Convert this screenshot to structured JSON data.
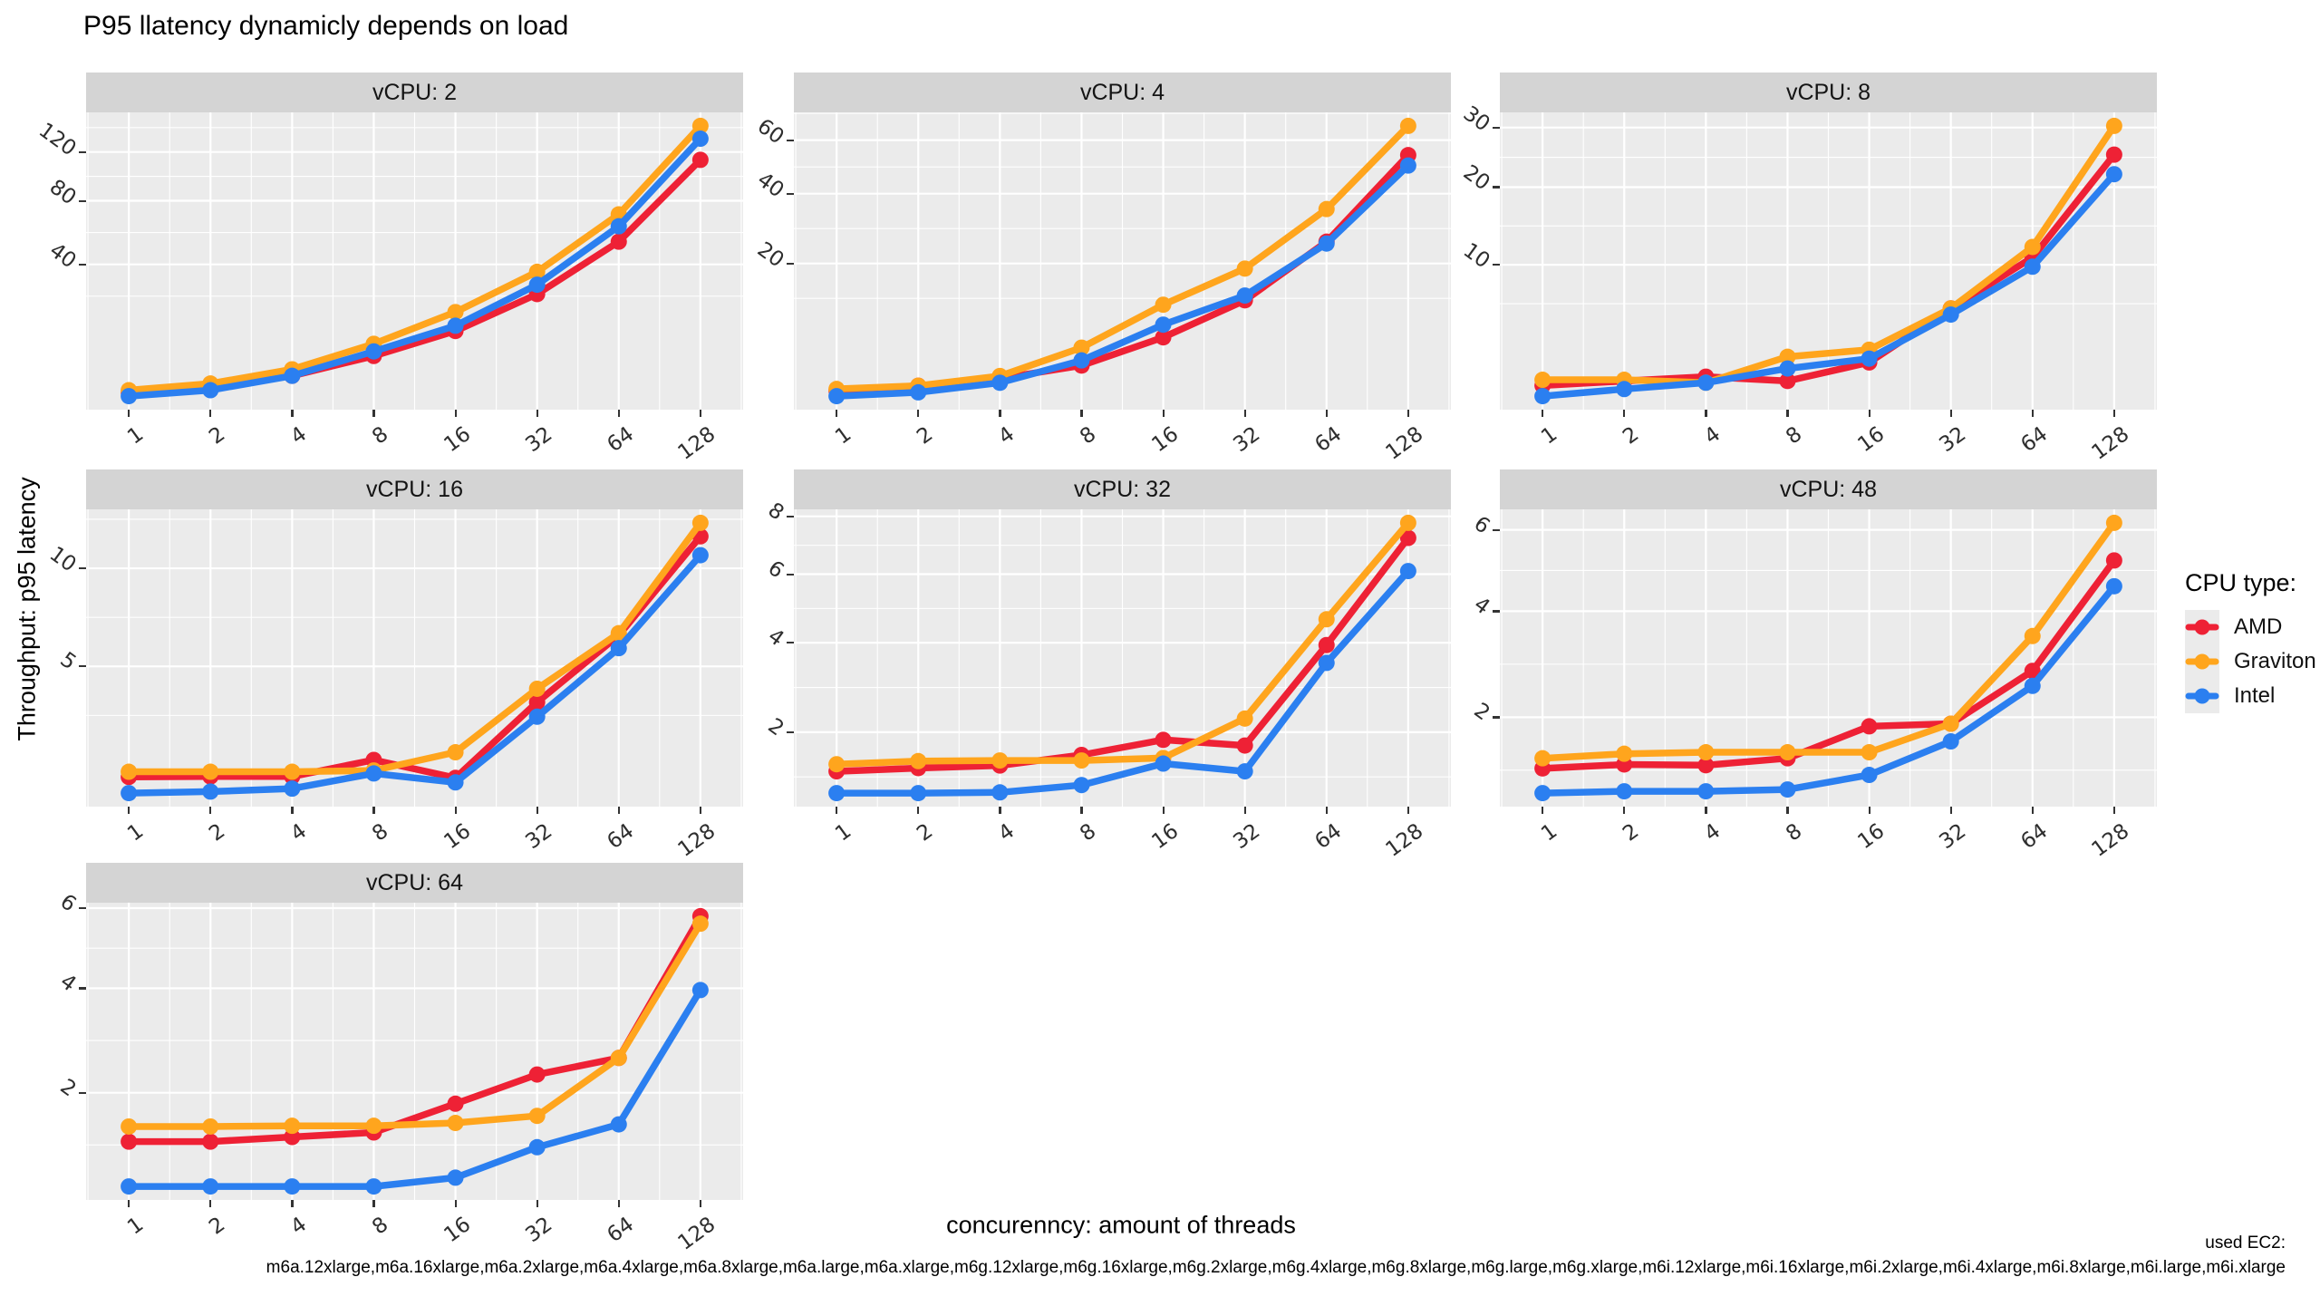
{
  "page": {
    "title": "P95 llatency dynamicly depends on load",
    "x_axis_title": "concurenncy: amount of threads",
    "y_axis_title": "Throughput: p95 latency",
    "caption_line1": "used EC2:",
    "caption_line2": "m6a.12xlarge,m6a.16xlarge,m6a.2xlarge,m6a.4xlarge,m6a.8xlarge,m6a.large,m6a.xlarge,m6g.12xlarge,m6g.16xlarge,m6g.2xlarge,m6g.4xlarge,m6g.8xlarge,m6g.large,m6g.xlarge,m6i.12xlarge,m6i.16xlarge,m6i.2xlarge,m6i.4xlarge,m6i.8xlarge,m6i.large,m6i.xlarge"
  },
  "legend": {
    "title": "CPU type:",
    "items": [
      {
        "label": "AMD",
        "color": "#ee2135"
      },
      {
        "label": "Graviton",
        "color": "#ffa51d"
      },
      {
        "label": "Intel",
        "color": "#2b7ff0"
      }
    ]
  },
  "chart_data": {
    "type": "line",
    "facet_variable": "vCPU",
    "x_scale": "log2",
    "y_scale": "sqrt",
    "x": [
      1,
      2,
      4,
      8,
      16,
      32,
      64,
      128
    ],
    "x_tick_labels": [
      "1",
      "2",
      "4",
      "8",
      "16",
      "32",
      "64",
      "128"
    ],
    "grid": "on",
    "legend_position": "right",
    "panel_background": "#ebebeb",
    "strip_background": "#d4d4d4",
    "gridline_color": "#ffffff",
    "facets": [
      {
        "label": "vCPU: 2",
        "yticks": [
          40,
          80,
          120
        ],
        "series": [
          {
            "name": "AMD",
            "values": [
              1.1,
              1.6,
              3.0,
              6.5,
              12.8,
              26.0,
              52.7,
              113.0
            ]
          },
          {
            "name": "Graviton",
            "values": [
              1.3,
              2.0,
              4.0,
              9.3,
              19.0,
              36.2,
              70.3,
              144.7
            ]
          },
          {
            "name": "Intel",
            "values": [
              0.8,
              1.3,
              3.0,
              7.5,
              14.4,
              30.1,
              62.3,
              132.3
            ]
          }
        ]
      },
      {
        "label": "vCPU: 4",
        "yticks": [
          20,
          40,
          60
        ],
        "series": [
          {
            "name": "AMD",
            "values": [
              1.2,
              1.5,
              2.0,
              3.1,
              6.3,
              12.2,
              25.5,
              54.0
            ]
          },
          {
            "name": "Graviton",
            "values": [
              1.3,
              1.5,
              2.2,
              5.0,
              11.4,
              18.8,
              35.0,
              66.0
            ]
          },
          {
            "name": "Intel",
            "values": [
              0.9,
              1.1,
              1.7,
              3.6,
              8.1,
              13.1,
              25.0,
              50.0
            ]
          }
        ]
      },
      {
        "label": "vCPU: 8",
        "yticks": [
          10,
          20,
          30
        ],
        "series": [
          {
            "name": "AMD",
            "values": [
              1.27,
              1.45,
              1.63,
              1.45,
              2.3,
              5.9,
              10.8,
              25.2
            ]
          },
          {
            "name": "Graviton",
            "values": [
              1.5,
              1.5,
              1.38,
              2.6,
              3.0,
              5.9,
              12.0,
              30.3
            ]
          },
          {
            "name": "Intel",
            "values": [
              0.9,
              1.14,
              1.38,
              2.0,
              2.5,
              5.4,
              9.8,
              22.0
            ]
          }
        ]
      },
      {
        "label": "vCPU: 16",
        "yticks": [
          5,
          10
        ],
        "series": [
          {
            "name": "AMD",
            "values": [
              1.42,
              1.43,
              1.43,
              1.83,
              1.4,
              3.6,
              6.4,
              12.0
            ]
          },
          {
            "name": "Graviton",
            "values": [
              1.54,
              1.54,
              1.54,
              1.57,
              2.03,
              4.1,
              6.5,
              12.9
            ]
          },
          {
            "name": "Intel",
            "values": [
              1.08,
              1.11,
              1.17,
              1.5,
              1.3,
              3.1,
              5.8,
              10.8
            ]
          }
        ]
      },
      {
        "label": "vCPU: 32",
        "yticks": [
          2,
          4,
          6,
          8
        ],
        "series": [
          {
            "name": "AMD",
            "values": [
              1.34,
              1.39,
              1.43,
              1.6,
              1.86,
              1.76,
              3.94,
              7.22
            ]
          },
          {
            "name": "Graviton",
            "values": [
              1.45,
              1.5,
              1.51,
              1.51,
              1.55,
              2.26,
              4.64,
              7.76
            ]
          },
          {
            "name": "Intel",
            "values": [
              1.03,
              1.03,
              1.04,
              1.14,
              1.46,
              1.34,
              3.49,
              6.1
            ]
          }
        ]
      },
      {
        "label": "vCPU: 48",
        "yticks": [
          2,
          4,
          6
        ],
        "series": [
          {
            "name": "AMD",
            "values": [
              1.28,
              1.33,
              1.32,
              1.41,
              1.86,
              1.9,
              2.79,
              5.2
            ]
          },
          {
            "name": "Graviton",
            "values": [
              1.41,
              1.47,
              1.49,
              1.49,
              1.49,
              1.9,
              3.47,
              6.19
            ]
          },
          {
            "name": "Intel",
            "values": [
              0.99,
              1.01,
              1.01,
              1.03,
              1.2,
              1.64,
              2.52,
              4.57
            ]
          }
        ]
      },
      {
        "label": "vCPU: 64",
        "yticks": [
          2,
          4,
          6
        ],
        "series": [
          {
            "name": "AMD",
            "values": [
              1.3,
              1.3,
              1.36,
              1.42,
              1.83,
              2.3,
              2.59,
              5.78
            ]
          },
          {
            "name": "Graviton",
            "values": [
              1.5,
              1.5,
              1.51,
              1.51,
              1.55,
              1.65,
              2.59,
              5.58
            ]
          },
          {
            "name": "Intel",
            "values": [
              0.79,
              0.79,
              0.79,
              0.79,
              0.88,
              1.23,
              1.53,
              3.96
            ]
          }
        ]
      }
    ]
  }
}
